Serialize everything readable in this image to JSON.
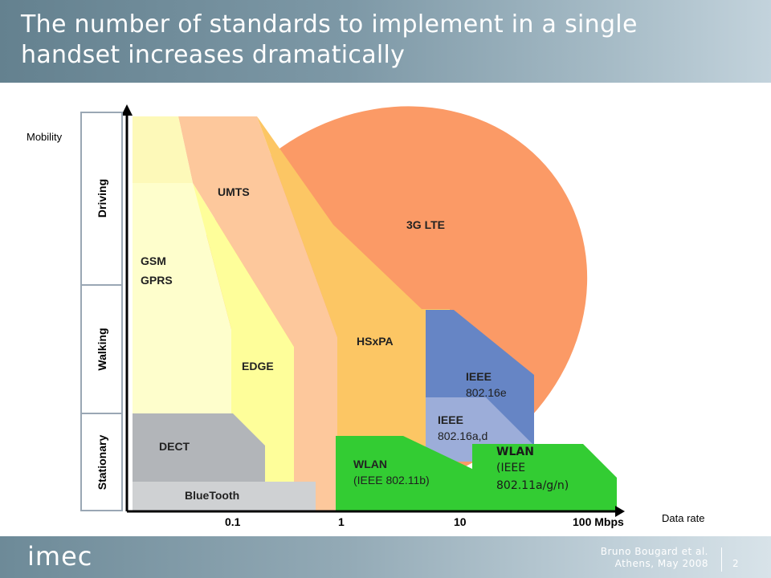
{
  "slide": {
    "title_line1": "The number of standards to implement in a single",
    "title_line2": "handset increases dramatically"
  },
  "axes": {
    "y_label": "Mobility",
    "x_label": "Data rate",
    "mobility_levels": [
      "Driving",
      "Walking",
      "Stationary"
    ],
    "x_ticks": [
      "0.1",
      "1",
      "10",
      "100 Mbps"
    ]
  },
  "regions": {
    "gsm_gprs": [
      "GSM",
      "GPRS"
    ],
    "umts": "UMTS",
    "lte": "3G LTE",
    "edge": "EDGE",
    "hsxpa": "HSxPA",
    "ieee_16e": [
      "IEEE",
      "802.16e"
    ],
    "ieee_16ad": [
      "IEEE",
      "802.16a,d"
    ],
    "dect": "DECT",
    "bluetooth": "BlueTooth",
    "wlan_b": [
      "WLAN",
      "(IEEE 802.11b)"
    ],
    "wlan_ag": [
      "WLAN",
      "(IEEE",
      "802.11a/g/n)"
    ]
  },
  "colors": {
    "header": "#7d98a6",
    "lte": "#fb9a66",
    "umts": "#fdc89c",
    "hsxpa": "#fcc664",
    "gsm": "#fefecc",
    "edge": "#fefe9a",
    "ieee_16e": "#6685c5",
    "ieee_16ad": "#9cadd9",
    "dect": "#b2b5b9",
    "bluetooth": "#cfd1d3",
    "wlan": "#33cc33"
  },
  "footer": {
    "logo": "imec",
    "author": "Bruno Bougard et al.",
    "venue": "Athens, May 2008",
    "page": "2"
  }
}
